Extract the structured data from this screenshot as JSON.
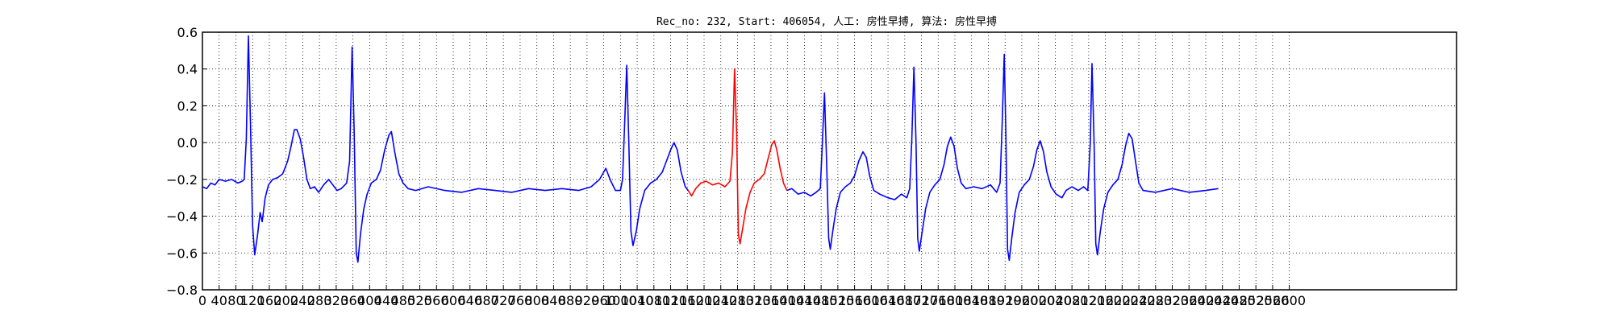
{
  "chart_data": {
    "type": "line",
    "title": "Rec_no: 232, Start: 406054, 人工: 房性早搏, 算法: 房性早搏",
    "xlabel": "",
    "ylabel": "",
    "xlim": [
      0,
      3000
    ],
    "ylim": [
      -0.8,
      0.6
    ],
    "grid": true,
    "x_ticks": [
      0,
      40,
      80,
      120,
      160,
      200,
      240,
      280,
      320,
      360,
      400,
      440,
      480,
      520,
      560,
      600,
      640,
      680,
      720,
      760,
      800,
      840,
      880,
      920,
      960,
      1000,
      1040,
      1080,
      1120,
      1160,
      1200,
      1240,
      1280,
      1320,
      1360,
      1400,
      1440,
      1480,
      1520,
      1560,
      1600,
      1640,
      1680,
      1720,
      1760,
      1800,
      1840,
      1880,
      1920,
      1960,
      2000,
      2040,
      2080,
      2120,
      2160,
      2200,
      2240,
      2280,
      2320,
      2360,
      2400,
      2440,
      2480,
      2520,
      2560,
      2600
    ],
    "y_ticks": [
      -0.8,
      -0.6,
      -0.4,
      -0.2,
      0.0,
      0.2,
      0.4,
      0.6
    ],
    "y_tick_labels": [
      "−0.8",
      "−0.6",
      "−0.4",
      "−0.2",
      "0.0",
      "0.2",
      "0.4",
      "0.6"
    ],
    "series": [
      {
        "color": "#0000ff",
        "points": [
          [
            0,
            -0.24
          ],
          [
            10,
            -0.25
          ],
          [
            20,
            -0.22
          ],
          [
            30,
            -0.23
          ],
          [
            40,
            -0.2
          ],
          [
            55,
            -0.21
          ],
          [
            70,
            -0.2
          ],
          [
            85,
            -0.22
          ],
          [
            95,
            -0.21
          ],
          [
            100,
            -0.2
          ],
          [
            105,
            0.02
          ],
          [
            110,
            0.58
          ],
          [
            115,
            0.1
          ],
          [
            120,
            -0.45
          ],
          [
            125,
            -0.61
          ],
          [
            132,
            -0.5
          ],
          [
            138,
            -0.38
          ],
          [
            143,
            -0.43
          ],
          [
            150,
            -0.3
          ],
          [
            158,
            -0.23
          ],
          [
            168,
            -0.2
          ],
          [
            180,
            -0.19
          ],
          [
            192,
            -0.17
          ],
          [
            204,
            -0.1
          ],
          [
            212,
            -0.02
          ],
          [
            220,
            0.07
          ],
          [
            226,
            0.07
          ],
          [
            234,
            0.02
          ],
          [
            242,
            -0.08
          ],
          [
            250,
            -0.2
          ],
          [
            258,
            -0.25
          ],
          [
            268,
            -0.24
          ],
          [
            278,
            -0.27
          ],
          [
            290,
            -0.23
          ],
          [
            302,
            -0.2
          ],
          [
            312,
            -0.23
          ],
          [
            322,
            -0.26
          ],
          [
            332,
            -0.25
          ],
          [
            345,
            -0.22
          ],
          [
            352,
            -0.1
          ],
          [
            358,
            0.52
          ],
          [
            363,
            0.05
          ],
          [
            368,
            -0.6
          ],
          [
            372,
            -0.65
          ],
          [
            378,
            -0.5
          ],
          [
            386,
            -0.36
          ],
          [
            394,
            -0.28
          ],
          [
            404,
            -0.22
          ],
          [
            416,
            -0.2
          ],
          [
            426,
            -0.15
          ],
          [
            436,
            -0.04
          ],
          [
            446,
            0.04
          ],
          [
            452,
            0.06
          ],
          [
            460,
            -0.05
          ],
          [
            470,
            -0.17
          ],
          [
            480,
            -0.22
          ],
          [
            492,
            -0.25
          ],
          [
            510,
            -0.26
          ],
          [
            540,
            -0.24
          ],
          [
            580,
            -0.26
          ],
          [
            620,
            -0.27
          ],
          [
            660,
            -0.25
          ],
          [
            700,
            -0.26
          ],
          [
            740,
            -0.27
          ],
          [
            780,
            -0.25
          ],
          [
            820,
            -0.26
          ],
          [
            860,
            -0.25
          ],
          [
            900,
            -0.26
          ],
          [
            930,
            -0.24
          ],
          [
            950,
            -0.2
          ],
          [
            965,
            -0.14
          ],
          [
            975,
            -0.2
          ],
          [
            988,
            -0.26
          ],
          [
            1000,
            -0.26
          ],
          [
            1005,
            -0.2
          ],
          [
            1010,
            0.1
          ],
          [
            1015,
            0.42
          ],
          [
            1020,
            0.0
          ],
          [
            1025,
            -0.48
          ],
          [
            1030,
            -0.56
          ],
          [
            1038,
            -0.48
          ],
          [
            1046,
            -0.36
          ],
          [
            1058,
            -0.26
          ],
          [
            1072,
            -0.22
          ],
          [
            1086,
            -0.2
          ],
          [
            1100,
            -0.16
          ],
          [
            1110,
            -0.1
          ],
          [
            1120,
            -0.04
          ],
          [
            1128,
            0.0
          ],
          [
            1136,
            -0.04
          ],
          [
            1145,
            -0.16
          ],
          [
            1155,
            -0.24
          ],
          [
            1162,
            -0.26
          ]
        ]
      },
      {
        "color": "#ff0000",
        "points": [
          [
            1162,
            -0.26
          ],
          [
            1170,
            -0.29
          ],
          [
            1180,
            -0.25
          ],
          [
            1192,
            -0.22
          ],
          [
            1205,
            -0.21
          ],
          [
            1220,
            -0.23
          ],
          [
            1235,
            -0.22
          ],
          [
            1250,
            -0.24
          ],
          [
            1262,
            -0.21
          ],
          [
            1268,
            -0.05
          ],
          [
            1273,
            0.4
          ],
          [
            1278,
            0.05
          ],
          [
            1282,
            -0.5
          ],
          [
            1286,
            -0.55
          ],
          [
            1292,
            -0.47
          ],
          [
            1300,
            -0.36
          ],
          [
            1310,
            -0.27
          ],
          [
            1320,
            -0.22
          ],
          [
            1332,
            -0.2
          ],
          [
            1344,
            -0.17
          ],
          [
            1354,
            -0.08
          ],
          [
            1362,
            -0.01
          ],
          [
            1368,
            0.01
          ],
          [
            1374,
            -0.04
          ],
          [
            1382,
            -0.14
          ],
          [
            1390,
            -0.22
          ],
          [
            1398,
            -0.26
          ]
        ]
      },
      {
        "color": "#0000ff",
        "points": [
          [
            1398,
            -0.26
          ],
          [
            1410,
            -0.25
          ],
          [
            1425,
            -0.28
          ],
          [
            1440,
            -0.27
          ],
          [
            1455,
            -0.29
          ],
          [
            1468,
            -0.27
          ],
          [
            1478,
            -0.25
          ],
          [
            1483,
            0.0
          ],
          [
            1488,
            0.27
          ],
          [
            1493,
            -0.1
          ],
          [
            1498,
            -0.52
          ],
          [
            1502,
            -0.58
          ],
          [
            1508,
            -0.48
          ],
          [
            1516,
            -0.36
          ],
          [
            1526,
            -0.27
          ],
          [
            1538,
            -0.24
          ],
          [
            1550,
            -0.22
          ],
          [
            1560,
            -0.18
          ],
          [
            1570,
            -0.1
          ],
          [
            1580,
            -0.05
          ],
          [
            1588,
            -0.08
          ],
          [
            1596,
            -0.18
          ],
          [
            1606,
            -0.26
          ],
          [
            1620,
            -0.28
          ],
          [
            1640,
            -0.3
          ],
          [
            1656,
            -0.31
          ],
          [
            1672,
            -0.28
          ],
          [
            1685,
            -0.3
          ],
          [
            1692,
            -0.25
          ],
          [
            1697,
            0.02
          ],
          [
            1702,
            0.41
          ],
          [
            1707,
            0.0
          ],
          [
            1711,
            -0.52
          ],
          [
            1715,
            -0.59
          ],
          [
            1722,
            -0.48
          ],
          [
            1730,
            -0.36
          ],
          [
            1740,
            -0.27
          ],
          [
            1752,
            -0.23
          ],
          [
            1764,
            -0.2
          ],
          [
            1774,
            -0.12
          ],
          [
            1782,
            -0.02
          ],
          [
            1790,
            0.03
          ],
          [
            1798,
            -0.02
          ],
          [
            1806,
            -0.14
          ],
          [
            1815,
            -0.22
          ],
          [
            1826,
            -0.25
          ],
          [
            1845,
            -0.24
          ],
          [
            1865,
            -0.25
          ],
          [
            1885,
            -0.23
          ],
          [
            1900,
            -0.27
          ],
          [
            1908,
            -0.22
          ],
          [
            1913,
            0.1
          ],
          [
            1918,
            0.48
          ],
          [
            1922,
            0.05
          ],
          [
            1926,
            -0.58
          ],
          [
            1930,
            -0.64
          ],
          [
            1936,
            -0.52
          ],
          [
            1944,
            -0.38
          ],
          [
            1954,
            -0.27
          ],
          [
            1966,
            -0.23
          ],
          [
            1978,
            -0.2
          ],
          [
            1988,
            -0.13
          ],
          [
            1996,
            -0.04
          ],
          [
            2004,
            0.01
          ],
          [
            2012,
            -0.05
          ],
          [
            2020,
            -0.16
          ],
          [
            2030,
            -0.24
          ],
          [
            2042,
            -0.28
          ],
          [
            2056,
            -0.3
          ],
          [
            2066,
            -0.26
          ],
          [
            2080,
            -0.24
          ],
          [
            2095,
            -0.26
          ],
          [
            2108,
            -0.24
          ],
          [
            2118,
            -0.26
          ],
          [
            2124,
            0.0
          ],
          [
            2128,
            0.43
          ],
          [
            2133,
            0.0
          ],
          [
            2137,
            -0.55
          ],
          [
            2141,
            -0.61
          ],
          [
            2148,
            -0.48
          ],
          [
            2156,
            -0.36
          ],
          [
            2166,
            -0.27
          ],
          [
            2178,
            -0.23
          ],
          [
            2190,
            -0.2
          ],
          [
            2200,
            -0.12
          ],
          [
            2208,
            -0.02
          ],
          [
            2216,
            0.05
          ],
          [
            2224,
            0.02
          ],
          [
            2232,
            -0.1
          ],
          [
            2240,
            -0.22
          ],
          [
            2250,
            -0.26
          ],
          [
            2280,
            -0.27
          ],
          [
            2320,
            -0.25
          ],
          [
            2360,
            -0.27
          ],
          [
            2400,
            -0.26
          ],
          [
            2430,
            -0.25
          ]
        ]
      }
    ]
  }
}
